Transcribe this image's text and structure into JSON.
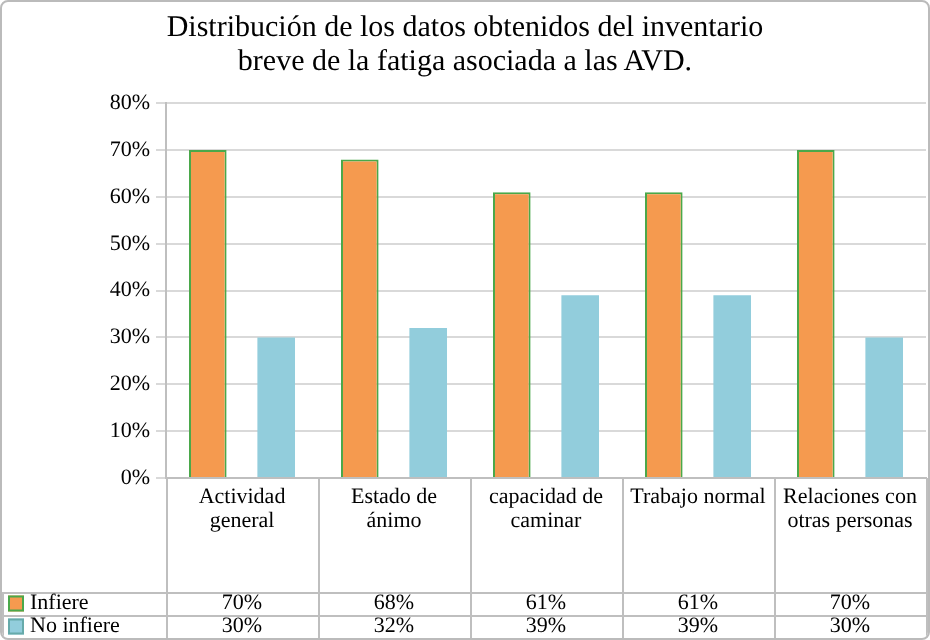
{
  "chart_data": {
    "type": "bar",
    "title": "Distribución  de los datos obtenidos del inventario  breve de la fatiga  asociada a las AVD.",
    "categories": [
      "Actividad general",
      "Estado de ánimo",
      "capacidad de caminar",
      "Trabajo normal",
      "Relaciones con otras personas"
    ],
    "series": [
      {
        "name": "Infiere",
        "color": "#f59a4f",
        "values": [
          70,
          68,
          61,
          61,
          70
        ],
        "value_labels": [
          "70%",
          "68%",
          "61%",
          "61%",
          "70%"
        ]
      },
      {
        "name": "No infiere",
        "color": "#92cddc",
        "values": [
          30,
          32,
          39,
          39,
          30
        ],
        "value_labels": [
          "30%",
          "32%",
          "39%",
          "39%",
          "30%"
        ]
      }
    ],
    "ylim": [
      0,
      80
    ],
    "yticks": [
      {
        "value": 0,
        "label": "0%"
      },
      {
        "value": 10,
        "label": "10%"
      },
      {
        "value": 20,
        "label": "20%"
      },
      {
        "value": 30,
        "label": "30%"
      },
      {
        "value": 40,
        "label": "40%"
      },
      {
        "value": 50,
        "label": "50%"
      },
      {
        "value": 60,
        "label": "60%"
      },
      {
        "value": 70,
        "label": "70%"
      },
      {
        "value": 80,
        "label": "80%"
      }
    ],
    "grid": "y",
    "legend": "bottom"
  }
}
